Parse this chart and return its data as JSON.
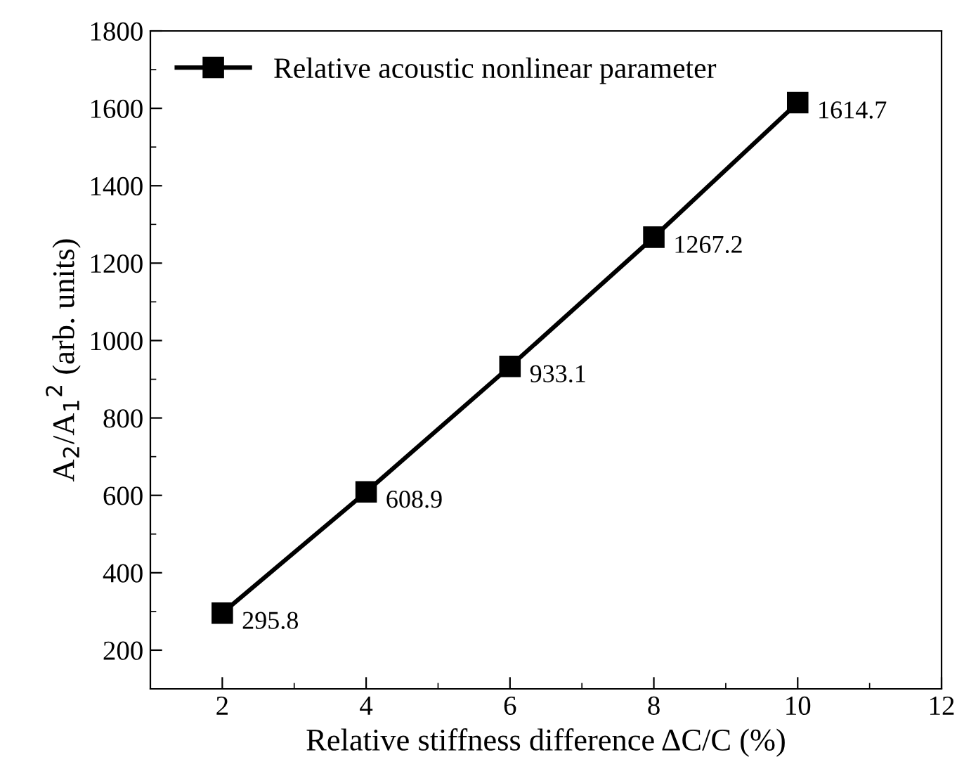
{
  "chart_data": {
    "type": "line",
    "xlabel": "Relative stiffness difference ΔC/C (%)",
    "ylabel": "A$_{2}$/A$_{1}$$^{2}$ (arb. units)",
    "x": [
      2,
      4,
      6,
      8,
      10
    ],
    "series": [
      {
        "name": "Relative acoustic nonlinear parameter",
        "color": "#000000",
        "values": [
          295.8,
          608.9,
          933.1,
          1267.2,
          1614.7
        ]
      }
    ],
    "xlim": [
      1,
      12
    ],
    "xticks": [
      2,
      4,
      6,
      8,
      10,
      12
    ],
    "ylim": [
      100,
      1800
    ],
    "yticks": [
      200,
      400,
      600,
      800,
      1000,
      1200,
      1400,
      1600,
      1800
    ],
    "marker": "square",
    "line_style": "solid",
    "data_labels": true,
    "legend": "top left",
    "grid": false
  }
}
